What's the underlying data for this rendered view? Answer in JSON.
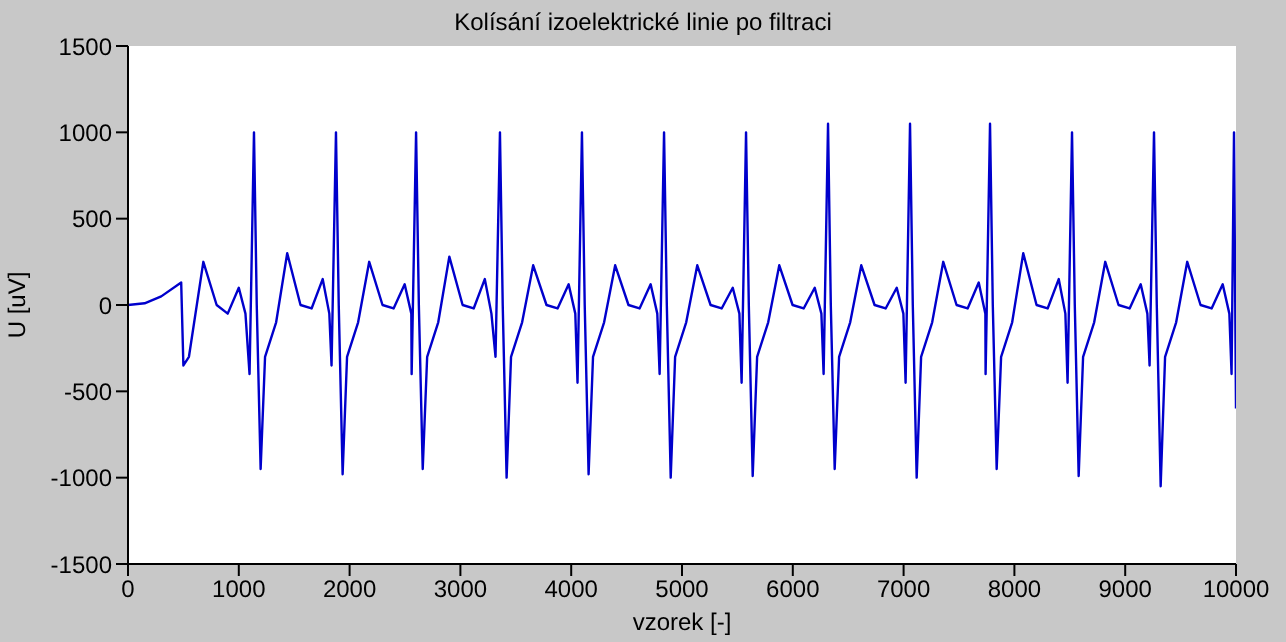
{
  "chart_data": {
    "type": "line",
    "title": "Kolísání izoelektrické linie po filtraci",
    "xlabel": "vzorek [-]",
    "ylabel": "U [uV]",
    "xlim": [
      0,
      10000
    ],
    "xticks": [
      0,
      1000,
      2000,
      3000,
      4000,
      5000,
      6000,
      7000,
      8000,
      9000,
      10000
    ],
    "ylim": [
      -1500,
      1500
    ],
    "yticks": [
      -1500,
      -1000,
      -500,
      0,
      500,
      1000,
      1500
    ],
    "marker": "none",
    "line_style": "solid",
    "series": [
      {
        "color": "#0000cc",
        "x": [
          0,
          150,
          300,
          480,
          500,
          550,
          680,
          800,
          900,
          1000,
          1060,
          1097,
          1137,
          1162,
          1197,
          1237,
          1337,
          1437,
          1557,
          1657,
          1757,
          1817,
          1837,
          1877,
          1902,
          1937,
          1977,
          2077,
          2177,
          2297,
          2397,
          2497,
          2557,
          2560,
          2600,
          2625,
          2660,
          2700,
          2800,
          2900,
          3020,
          3120,
          3220,
          3280,
          3317,
          3357,
          3382,
          3417,
          3457,
          3557,
          3657,
          3777,
          3877,
          3977,
          4037,
          4057,
          4097,
          4122,
          4157,
          4197,
          4297,
          4397,
          4517,
          4617,
          4717,
          4777,
          4798,
          4838,
          4863,
          4898,
          4938,
          5038,
          5138,
          5258,
          5358,
          5458,
          5518,
          5538,
          5578,
          5603,
          5638,
          5678,
          5778,
          5878,
          5998,
          6098,
          6198,
          6258,
          6278,
          6318,
          6343,
          6378,
          6418,
          6518,
          6618,
          6738,
          6838,
          6938,
          6998,
          7018,
          7058,
          7083,
          7118,
          7158,
          7258,
          7358,
          7478,
          7578,
          7678,
          7738,
          7740,
          7780,
          7805,
          7840,
          7880,
          7980,
          8080,
          8200,
          8300,
          8400,
          8460,
          8480,
          8520,
          8545,
          8580,
          8620,
          8720,
          8820,
          8940,
          9040,
          9140,
          9200,
          9220,
          9260,
          9285,
          9320,
          9360,
          9460,
          9560,
          9680,
          9780,
          9880,
          9940,
          9960,
          9982,
          10000
        ],
        "values": [
          0,
          10,
          50,
          130,
          -350,
          -300,
          250,
          0,
          -50,
          100,
          -50,
          -400,
          1000,
          0,
          -950,
          -300,
          -100,
          300,
          0,
          -20,
          150,
          -50,
          -350,
          1000,
          0,
          -980,
          -300,
          -100,
          250,
          0,
          -20,
          120,
          -50,
          -400,
          1000,
          0,
          -950,
          -300,
          -100,
          280,
          0,
          -20,
          150,
          -50,
          -300,
          1000,
          0,
          -1000,
          -300,
          -100,
          230,
          0,
          -20,
          120,
          -50,
          -450,
          1000,
          0,
          -980,
          -300,
          -100,
          230,
          0,
          -20,
          120,
          -50,
          -400,
          1000,
          0,
          -1000,
          -300,
          -100,
          230,
          0,
          -20,
          100,
          -50,
          -450,
          1000,
          0,
          -990,
          -300,
          -100,
          230,
          0,
          -20,
          100,
          -50,
          -400,
          1050,
          0,
          -950,
          -300,
          -100,
          230,
          0,
          -20,
          100,
          -50,
          -450,
          1050,
          0,
          -1000,
          -300,
          -100,
          250,
          0,
          -20,
          130,
          -50,
          -400,
          1050,
          0,
          -950,
          -300,
          -100,
          300,
          0,
          -20,
          150,
          -50,
          -450,
          1000,
          0,
          -990,
          -300,
          -100,
          250,
          0,
          -20,
          120,
          -50,
          -350,
          1000,
          0,
          -1050,
          -300,
          -100,
          250,
          0,
          -20,
          120,
          -50,
          -400,
          1000,
          -600
        ]
      }
    ]
  }
}
